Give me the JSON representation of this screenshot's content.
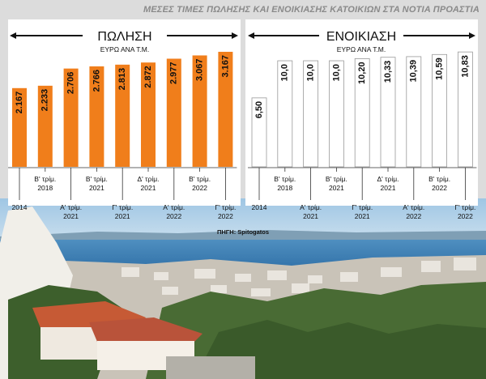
{
  "headline": "ΜΕΣΕΣ ΤΙΜΕΣ ΠΩΛΗΣΗΣ ΚΑΙ ΕΝΟΙΚΙΑΣΗΣ ΚΑΤΟΙΚΙΩΝ ΣΤΑ ΝΟΤΙΑ ΠΡΟΑΣΤΙΑ",
  "source": "ΠΗΓΗ: Spitogatos",
  "colors": {
    "sale": "#f07e1b",
    "rent": "#ffffff",
    "panel": "#ffffff",
    "background": "#dcdcdc"
  },
  "chart_data": [
    {
      "type": "bar",
      "title": "ΠΩΛΗΣΗ",
      "subtitle": "ΕΥΡΩ ΑΝΑ Τ.Μ.",
      "categories": [
        "2014",
        "Β' τρίμ. 2018",
        "Α' τρίμ. 2021",
        "Β' τρίμ. 2021",
        "Γ' τρίμ. 2021",
        "Δ' τρίμ. 2021",
        "Α' τρίμ. 2022",
        "Β' τρίμ. 2022",
        "Γ' τρίμ. 2022"
      ],
      "values": [
        2167,
        2233,
        2706,
        2766,
        2813,
        2872,
        2977,
        3067,
        3167
      ],
      "value_labels": [
        "2.167",
        "2.233",
        "2.706",
        "2.766",
        "2.813",
        "2.872",
        "2.977",
        "3.067",
        "3.167"
      ],
      "axis_labels": [
        {
          "line1": "2014",
          "line2": "",
          "row": "low"
        },
        {
          "line1": "Β' τρίμ.",
          "line2": "2018",
          "row": "high"
        },
        {
          "line1": "Α' τρίμ.",
          "line2": "2021",
          "row": "low"
        },
        {
          "line1": "Β' τρίμ.",
          "line2": "2021",
          "row": "high"
        },
        {
          "line1": "Γ' τρίμ.",
          "line2": "2021",
          "row": "low"
        },
        {
          "line1": "Δ' τρίμ.",
          "line2": "2021",
          "row": "high"
        },
        {
          "line1": "Α' τρίμ.",
          "line2": "2022",
          "row": "low"
        },
        {
          "line1": "Β' τρίμ.",
          "line2": "2022",
          "row": "high"
        },
        {
          "line1": "Γ' τρίμ.",
          "line2": "2022",
          "row": "low"
        }
      ],
      "ylim": [
        0,
        3300
      ],
      "grid": false
    },
    {
      "type": "bar",
      "title": "ΕΝΟΙΚΙΑΣΗ",
      "subtitle": "ΕΥΡΩ ΑΝΑ Τ.Μ.",
      "categories": [
        "2014",
        "Β' τρίμ. 2018",
        "Α' τρίμ. 2021",
        "Β' τρίμ. 2021",
        "Γ' τρίμ. 2021",
        "Δ' τρίμ. 2021",
        "Α' τρίμ. 2022",
        "Β' τρίμ. 2022",
        "Γ' τρίμ. 2022"
      ],
      "values": [
        6.5,
        10.0,
        10.0,
        10.0,
        10.2,
        10.33,
        10.39,
        10.59,
        10.83
      ],
      "value_labels": [
        "6,50",
        "10,0",
        "10,0",
        "10,0",
        "10,20",
        "10,33",
        "10,39",
        "10,59",
        "10,83"
      ],
      "axis_labels": [
        {
          "line1": "2014",
          "line2": "",
          "row": "low"
        },
        {
          "line1": "Β' τρίμ.",
          "line2": "2018",
          "row": "high"
        },
        {
          "line1": "Α' τρίμ.",
          "line2": "2021",
          "row": "low"
        },
        {
          "line1": "Β' τρίμ.",
          "line2": "2021",
          "row": "high"
        },
        {
          "line1": "Γ' τρίμ.",
          "line2": "2021",
          "row": "low"
        },
        {
          "line1": "Δ' τρίμ.",
          "line2": "2021",
          "row": "high"
        },
        {
          "line1": "Α' τρίμ.",
          "line2": "2022",
          "row": "low"
        },
        {
          "line1": "Β' τρίμ.",
          "line2": "2022",
          "row": "high"
        },
        {
          "line1": "Γ' τρίμ.",
          "line2": "2022",
          "row": "low"
        }
      ],
      "ylim": [
        0,
        11.3
      ],
      "grid": false
    }
  ]
}
